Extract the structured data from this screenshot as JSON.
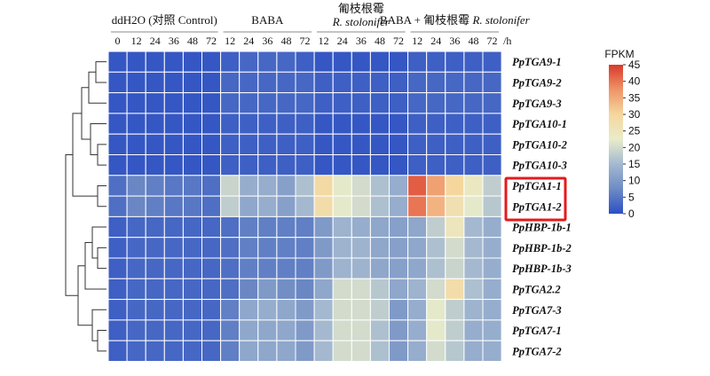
{
  "chart_data": {
    "type": "heatmap",
    "groups": [
      {
        "label": "ddH2O (对照 Control)",
        "cols": [
          "0",
          "12",
          "24",
          "36",
          "48",
          "72"
        ]
      },
      {
        "label": "BABA",
        "cols": [
          "12",
          "24",
          "36",
          "48",
          "72"
        ]
      },
      {
        "label": "匍枝根霉",
        "label_line2": "R. stolonifer",
        "cols": [
          "12",
          "24",
          "36",
          "48",
          "72"
        ]
      },
      {
        "label": "BABA + 匍枝根霉",
        "label_italic": "R. stolonifer",
        "cols": [
          "12",
          "24",
          "36",
          "48",
          "72"
        ]
      }
    ],
    "time_unit": "/h",
    "rows": [
      "PpTGA9-1",
      "PpTGA9-2",
      "PpTGA9-3",
      "PpTGA10-1",
      "PpTGA10-2",
      "PpTGA10-3",
      "PpTGA1-1",
      "PpTGA1-2",
      "PpHBP-1b-1",
      "PpHBP-1b-2",
      "PpHBP-1b-3",
      "PpTGA2.2",
      "PpTGA7-3",
      "PpTGA7-1",
      "PpTGA7-2"
    ],
    "highlighted_rows": [
      "PpTGA1-1",
      "PpTGA1-2"
    ],
    "values": [
      [
        1,
        1,
        1,
        1,
        1,
        1,
        2,
        3,
        3,
        3,
        2,
        1,
        1,
        1,
        1,
        1,
        2,
        2,
        2,
        2,
        2
      ],
      [
        1,
        1,
        1,
        1,
        1,
        1,
        3,
        3,
        3,
        3,
        3,
        2,
        2,
        2,
        2,
        2,
        3,
        3,
        3,
        3,
        3
      ],
      [
        1,
        1,
        1,
        1,
        1,
        1,
        3,
        3,
        3,
        3,
        3,
        2,
        2,
        2,
        2,
        2,
        3,
        3,
        3,
        3,
        3
      ],
      [
        1,
        1,
        1,
        1,
        1,
        1,
        2,
        2,
        2,
        2,
        2,
        1,
        1,
        1,
        1,
        1,
        2,
        2,
        2,
        2,
        2
      ],
      [
        1,
        1,
        1,
        1,
        1,
        1,
        2,
        2,
        2,
        2,
        2,
        1,
        1,
        1,
        1,
        1,
        2,
        2,
        2,
        2,
        2
      ],
      [
        1,
        1,
        1,
        1,
        1,
        1,
        2,
        2,
        2,
        2,
        2,
        1,
        1,
        1,
        1,
        1,
        2,
        2,
        2,
        2,
        2
      ],
      [
        4,
        7,
        6,
        5,
        5,
        4,
        19,
        13,
        13,
        11,
        16,
        29,
        22,
        20,
        16,
        13,
        42,
        36,
        30,
        24,
        18
      ],
      [
        4,
        7,
        6,
        5,
        5,
        4,
        18,
        12,
        13,
        11,
        15,
        28,
        22,
        20,
        16,
        13,
        40,
        34,
        27,
        22,
        17
      ],
      [
        2,
        3,
        3,
        3,
        3,
        3,
        4,
        6,
        6,
        6,
        6,
        10,
        14,
        13,
        12,
        11,
        12,
        18,
        25,
        15,
        13
      ],
      [
        2,
        3,
        3,
        3,
        3,
        3,
        4,
        6,
        6,
        6,
        6,
        10,
        14,
        14,
        12,
        11,
        12,
        16,
        20,
        15,
        13
      ],
      [
        2,
        3,
        3,
        3,
        3,
        3,
        4,
        6,
        6,
        6,
        6,
        10,
        14,
        14,
        12,
        11,
        12,
        16,
        19,
        15,
        13
      ],
      [
        2,
        3,
        3,
        3,
        3,
        3,
        4,
        7,
        10,
        8,
        7,
        12,
        20,
        20,
        17,
        12,
        14,
        20,
        28,
        16,
        13
      ],
      [
        2,
        3,
        3,
        3,
        3,
        3,
        6,
        12,
        13,
        12,
        10,
        15,
        20,
        20,
        18,
        10,
        13,
        22,
        18,
        14,
        13
      ],
      [
        2,
        3,
        3,
        3,
        3,
        3,
        6,
        12,
        12,
        12,
        10,
        15,
        20,
        20,
        16,
        10,
        13,
        22,
        18,
        13,
        13
      ],
      [
        2,
        3,
        3,
        3,
        3,
        3,
        6,
        12,
        12,
        12,
        10,
        15,
        20,
        20,
        16,
        10,
        13,
        20,
        17,
        13,
        13
      ]
    ],
    "legend": {
      "title": "FPKM",
      "min": 0,
      "max": 45,
      "ticks": [
        0,
        5,
        10,
        15,
        20,
        25,
        30,
        35,
        40,
        45
      ],
      "colors": [
        "#2c4fc4",
        "#6e8bc4",
        "#a4b9d0",
        "#e9ecca",
        "#f5d79e",
        "#ef9467",
        "#d9382b"
      ]
    }
  }
}
